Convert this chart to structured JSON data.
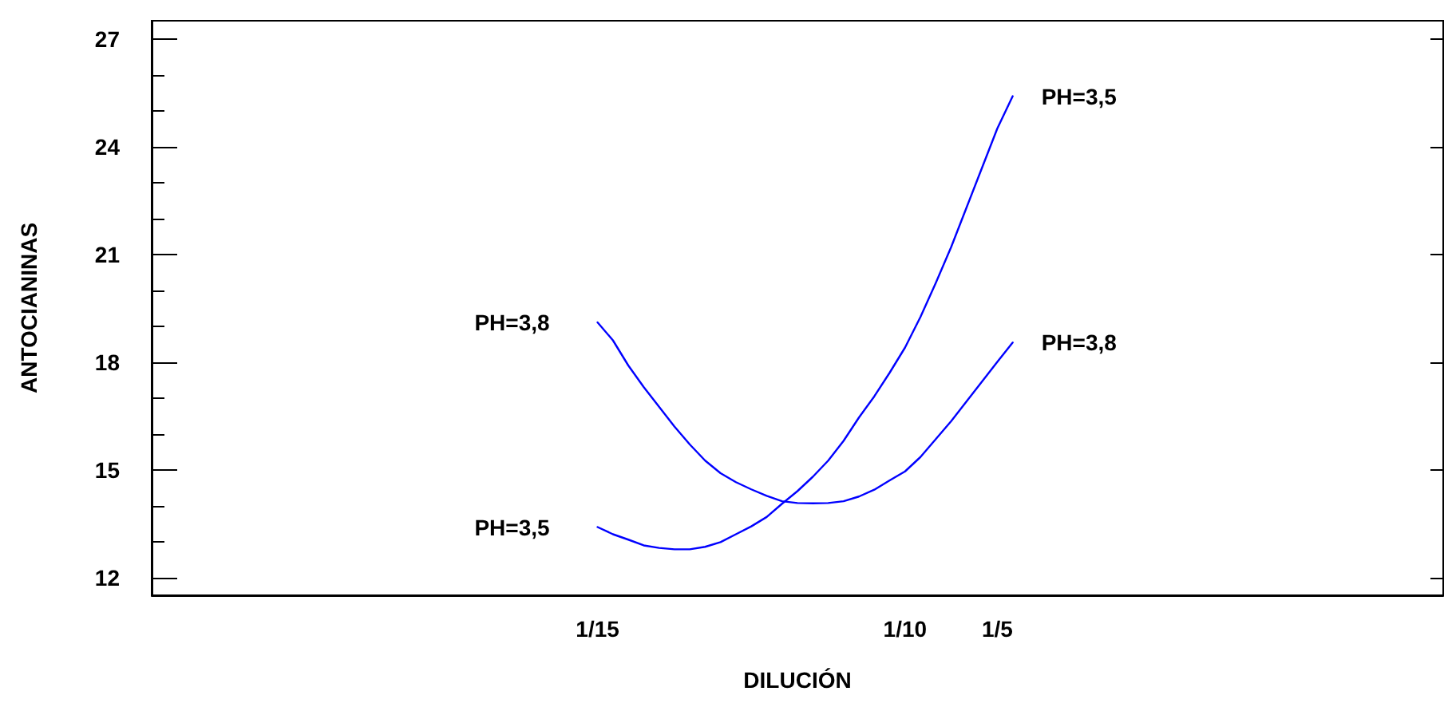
{
  "chart_data": {
    "type": "line",
    "xlabel": "DILUCIÓN",
    "ylabel": "ANTOCIANINAS",
    "categories": [
      null,
      null,
      null,
      null,
      null,
      null,
      null,
      null,
      null,
      null,
      null,
      null,
      null,
      null,
      null,
      null,
      null,
      null,
      null,
      null,
      null,
      null,
      null,
      null,
      null,
      null,
      null,
      null,
      null,
      "1/15",
      null,
      null,
      null,
      null,
      null,
      null,
      null,
      null,
      null,
      null,
      null,
      null,
      null,
      null,
      null,
      null,
      null,
      null,
      null,
      "1/10",
      null,
      null,
      null,
      null,
      null,
      "1/5",
      null,
      null,
      null,
      null,
      null,
      null,
      null,
      null,
      null,
      null,
      null,
      null,
      null,
      null,
      null,
      null,
      null,
      null,
      null,
      null,
      null,
      null,
      null,
      null,
      null,
      null,
      null,
      null,
      null
    ],
    "ylim": [
      11.5,
      27.5
    ],
    "yticks": [
      12,
      15,
      18,
      21,
      24,
      27
    ],
    "grid": false,
    "legend": false,
    "marker": "none",
    "line_style": "solid",
    "series": [
      {
        "name": "PH=3,5",
        "color": "#0000ff",
        "values": [
          null,
          null,
          null,
          null,
          null,
          null,
          null,
          null,
          null,
          null,
          null,
          null,
          null,
          null,
          null,
          null,
          null,
          null,
          null,
          null,
          null,
          null,
          null,
          null,
          null,
          null,
          null,
          null,
          null,
          13.4,
          13.2,
          13.05,
          12.89,
          12.82,
          12.78,
          12.78,
          12.85,
          12.98,
          13.2,
          13.42,
          13.68,
          14.05,
          14.4,
          14.8,
          15.25,
          15.8,
          16.45,
          17.04,
          17.7,
          18.4,
          19.25,
          20.2,
          21.2,
          22.3,
          23.4,
          24.5,
          25.4,
          null,
          null,
          null,
          null,
          null,
          null,
          null,
          null,
          null,
          null,
          null,
          null,
          null,
          null,
          null,
          null,
          null,
          null,
          null,
          null,
          null,
          null,
          null,
          null,
          null,
          null,
          null,
          null
        ]
      },
      {
        "name": "PH=3,8",
        "color": "#0000ff",
        "values": [
          null,
          null,
          null,
          null,
          null,
          null,
          null,
          null,
          null,
          null,
          null,
          null,
          null,
          null,
          null,
          null,
          null,
          null,
          null,
          null,
          null,
          null,
          null,
          null,
          null,
          null,
          null,
          null,
          null,
          19.1,
          18.6,
          17.9,
          17.3,
          16.75,
          16.2,
          15.7,
          15.25,
          14.9,
          14.65,
          14.45,
          14.27,
          14.12,
          14.07,
          14.06,
          14.07,
          14.12,
          14.25,
          14.44,
          14.7,
          14.95,
          15.35,
          15.85,
          16.35,
          16.9,
          17.45,
          18.0,
          18.54,
          null,
          null,
          null,
          null,
          null,
          null,
          null,
          null,
          null,
          null,
          null,
          null,
          null,
          null,
          null,
          null,
          null,
          null,
          null,
          null,
          null,
          null,
          null,
          null,
          null,
          null,
          null,
          null
        ]
      }
    ]
  }
}
